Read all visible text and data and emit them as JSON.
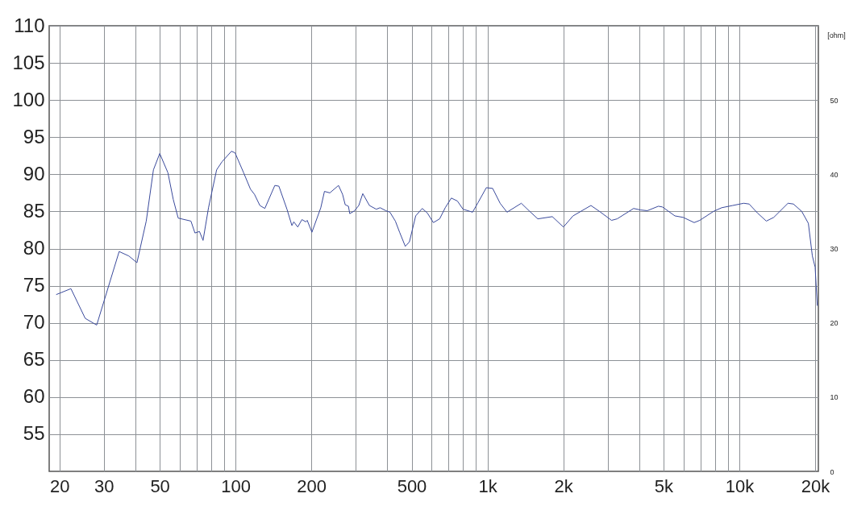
{
  "chart_data": {
    "type": "line",
    "y2label": "[ohm]",
    "log": "x",
    "grid": true,
    "xlim": [
      18.2,
      20600
    ],
    "ylim": [
      50,
      110
    ],
    "y2lim": [
      0,
      60
    ],
    "xticks": [
      20,
      30,
      {
        "value": 40,
        "label": null
      },
      50,
      {
        "value": 60,
        "label": null
      },
      {
        "value": 70,
        "label": null
      },
      {
        "value": 80,
        "label": null
      },
      {
        "value": 90,
        "label": null
      },
      100,
      200,
      {
        "value": 300,
        "label": null
      },
      {
        "value": 400,
        "label": null
      },
      500,
      {
        "value": 600,
        "label": null
      },
      {
        "value": 700,
        "label": null
      },
      {
        "value": 800,
        "label": null
      },
      {
        "value": 900,
        "label": null
      },
      {
        "value": 1000,
        "label": "1k"
      },
      {
        "value": 2000,
        "label": "2k"
      },
      {
        "value": 3000,
        "label": null
      },
      {
        "value": 4000,
        "label": null
      },
      {
        "value": 5000,
        "label": "5k"
      },
      {
        "value": 6000,
        "label": null
      },
      {
        "value": 7000,
        "label": null
      },
      {
        "value": 8000,
        "label": null
      },
      {
        "value": 9000,
        "label": null
      },
      {
        "value": 10000,
        "label": "10k"
      },
      {
        "value": 20000,
        "label": "20k"
      }
    ],
    "yticks": [
      55,
      60,
      65,
      70,
      75,
      80,
      85,
      90,
      95,
      100,
      105,
      110
    ],
    "y2ticks": [
      0,
      10,
      20,
      30,
      40,
      50
    ],
    "series": [
      {
        "color": "#3a4a9c",
        "x": [
          19.4,
          22.2,
          25.3,
          28.1,
          34.5,
          37.7,
          40.6,
          44.2,
          47.2,
          50,
          53.9,
          56.6,
          59.2,
          66.5,
          69,
          71.9,
          74.3,
          78.1,
          84.1,
          88.4,
          96.3,
          99.5,
          107.7,
          114.6,
          118.9,
          124.9,
          130.7,
          143.2,
          148.6,
          160,
          167.4,
          170.3,
          176.6,
          183.4,
          190.2,
          192.5,
          201,
          218,
          225.4,
          236.8,
          256.3,
          266,
          272.5,
          280.7,
          284,
          297,
          308.5,
          320,
          340,
          362,
          375,
          395,
          410,
          431,
          448,
          472,
          490,
          519,
          551,
          577,
          610,
          646,
          680,
          719,
          760,
          800,
          873,
          918,
          990,
          1049,
          1123,
          1196,
          1363,
          1462,
          1585,
          1810,
          2003,
          2187,
          2576,
          2813,
          3110,
          3273,
          3805,
          4051,
          4313,
          4771,
          4955,
          5549,
          5986,
          6618,
          6966,
          7893,
          8511,
          9412,
          10410,
          10940,
          11800,
          12800,
          13700,
          15600,
          16400,
          17700,
          18800,
          19500,
          20000,
          20400
        ],
        "values": [
          73.8,
          74.6,
          70.6,
          69.7,
          79.6,
          79.0,
          78.1,
          83.7,
          90.6,
          92.8,
          90.2,
          86.6,
          84.1,
          83.7,
          82.1,
          82.3,
          81.1,
          85.5,
          90.6,
          91.7,
          93.1,
          92.9,
          90.2,
          88.0,
          87.3,
          85.8,
          85.4,
          88.5,
          88.4,
          85.3,
          83.1,
          83.6,
          82.9,
          83.9,
          83.6,
          83.8,
          82.2,
          85.5,
          87.7,
          87.5,
          88.5,
          87.3,
          85.9,
          85.7,
          84.7,
          85.1,
          85.8,
          87.4,
          85.8,
          85.3,
          85.5,
          85.1,
          84.9,
          83.7,
          82.2,
          80.3,
          80.9,
          84.4,
          85.4,
          84.8,
          83.5,
          84.0,
          85.5,
          86.8,
          86.4,
          85.3,
          84.9,
          86.2,
          88.2,
          88.1,
          86.1,
          84.9,
          86.1,
          85.1,
          84.0,
          84.3,
          82.9,
          84.4,
          85.8,
          84.9,
          83.8,
          84.0,
          85.4,
          85.2,
          85.1,
          85.7,
          85.6,
          84.4,
          84.2,
          83.5,
          83.8,
          85.0,
          85.5,
          85.8,
          86.1,
          86.0,
          84.8,
          83.7,
          84.2,
          86.1,
          86.0,
          85.0,
          83.4,
          79.0,
          77.5,
          72.3
        ]
      }
    ]
  }
}
